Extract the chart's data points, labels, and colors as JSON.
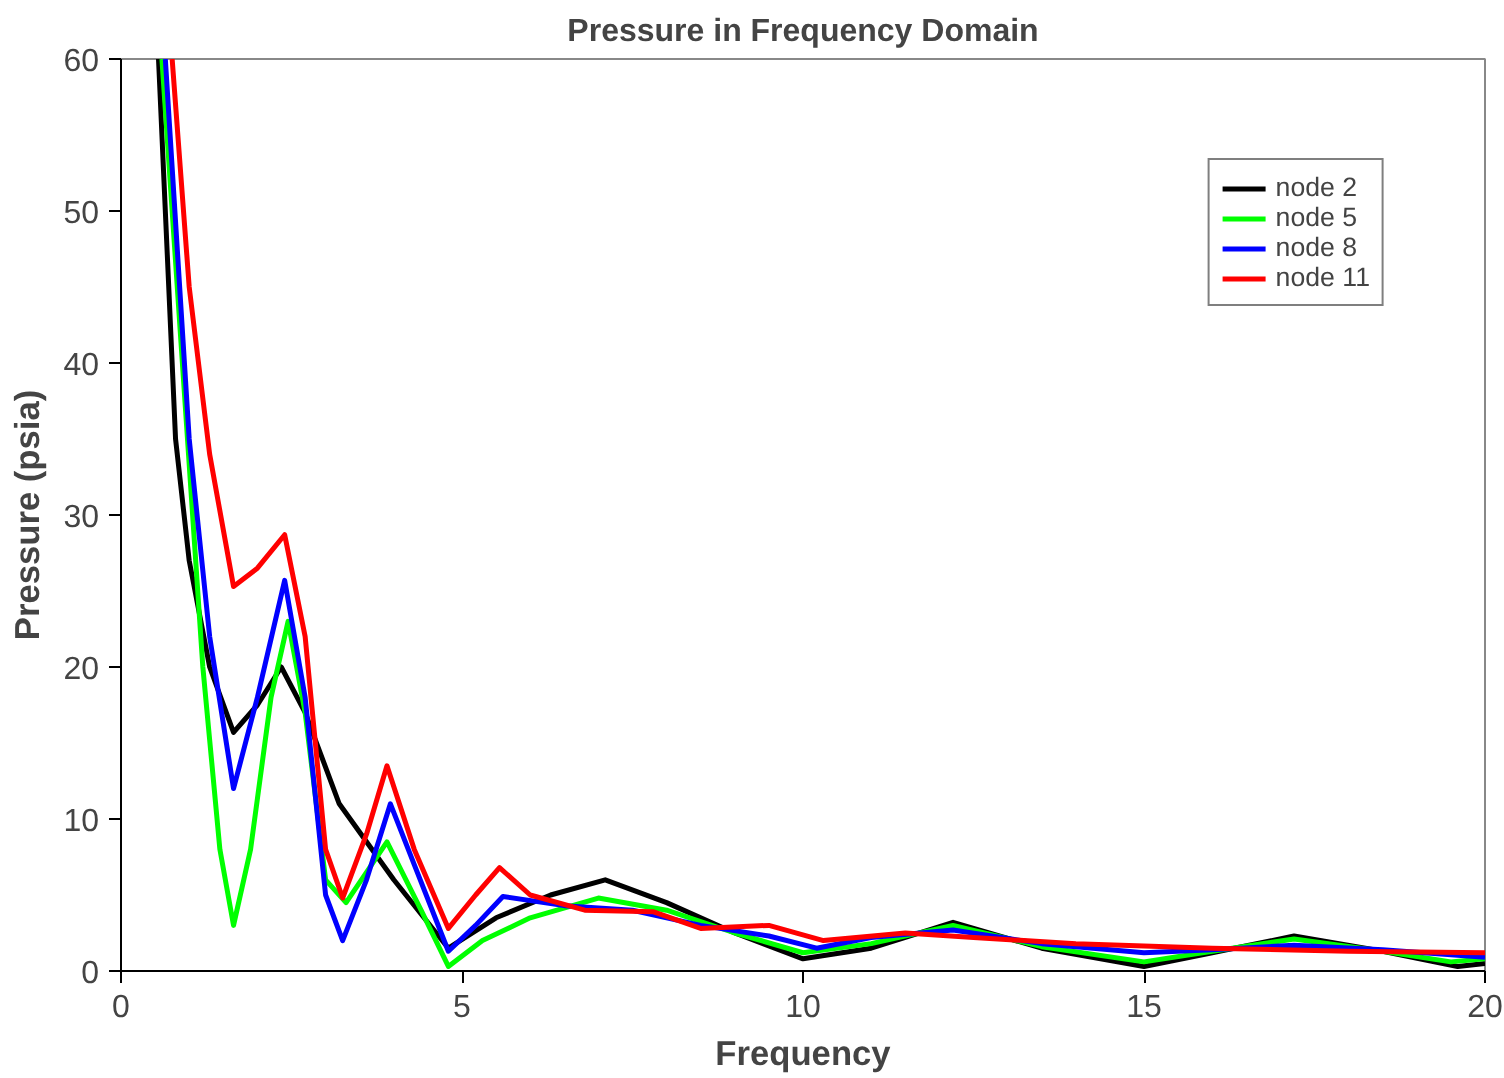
{
  "chart_data": {
    "type": "line",
    "title": "Pressure in Frequency Domain",
    "xlabel": "Frequency",
    "ylabel": "Pressure (psia)",
    "xlim": [
      0,
      20
    ],
    "ylim": [
      0,
      60
    ],
    "xticks": [
      0,
      5,
      10,
      15,
      20
    ],
    "yticks": [
      0,
      10,
      20,
      30,
      40,
      50,
      60
    ],
    "grid": false,
    "legend": "top right",
    "marker": "none",
    "line_style": "solid",
    "series": [
      {
        "name": "node 2",
        "color": "#000000",
        "x": [
          0.55,
          0.8,
          1.0,
          1.3,
          1.65,
          2.0,
          2.35,
          2.7,
          3.2,
          4.0,
          4.8,
          5.5,
          6.3,
          7.1,
          8.0,
          9.0,
          10.0,
          11.0,
          12.2,
          13.5,
          15.0,
          16.0,
          17.2,
          18.5,
          19.6,
          20.0
        ],
        "values": [
          60,
          35,
          27,
          20,
          15.7,
          17.5,
          20,
          17,
          11,
          6,
          1.5,
          3.5,
          5,
          6,
          4.5,
          2.5,
          0.8,
          1.5,
          3.2,
          1.5,
          0.3,
          1.2,
          2.3,
          1.3,
          0.3,
          0.5
        ]
      },
      {
        "name": "node 5",
        "color": "#00ff00",
        "x": [
          0.6,
          0.9,
          1.2,
          1.45,
          1.65,
          1.9,
          2.2,
          2.45,
          2.7,
          3.0,
          3.3,
          3.9,
          4.4,
          4.8,
          5.3,
          6.0,
          7.0,
          8.0,
          9.0,
          10.0,
          11.0,
          12.2,
          13.5,
          15.0,
          16.0,
          17.2,
          18.5,
          19.5,
          20.0
        ],
        "values": [
          60,
          40,
          20,
          8,
          3,
          8,
          18,
          23,
          17,
          6,
          4.5,
          8.5,
          4,
          0.3,
          2,
          3.5,
          4.8,
          4,
          2.5,
          1.2,
          1.8,
          3,
          1.6,
          0.6,
          1.3,
          2.1,
          1.3,
          0.6,
          0.8
        ]
      },
      {
        "name": "node 8",
        "color": "#0000ff",
        "x": [
          0.65,
          1.0,
          1.3,
          1.65,
          2.0,
          2.4,
          2.7,
          3.0,
          3.25,
          3.6,
          3.95,
          4.3,
          4.8,
          5.2,
          5.6,
          6.5,
          7.5,
          8.5,
          9.5,
          10.2,
          11.0,
          12.2,
          13.5,
          15.0,
          16.0,
          17.2,
          18.5,
          20.0
        ],
        "values": [
          60,
          35,
          22,
          12,
          18,
          25.7,
          18,
          5,
          2,
          6,
          11,
          7,
          1.3,
          3,
          4.9,
          4.3,
          4,
          3,
          2.3,
          1.5,
          2.2,
          2.7,
          1.8,
          1.2,
          1.4,
          1.7,
          1.4,
          0.9
        ]
      },
      {
        "name": "node 11",
        "color": "#ff0000",
        "x": [
          0.75,
          1.0,
          1.3,
          1.65,
          2.0,
          2.4,
          2.7,
          3.0,
          3.25,
          3.6,
          3.9,
          4.3,
          4.8,
          5.2,
          5.55,
          6.0,
          6.8,
          7.8,
          8.5,
          9.5,
          10.3,
          11.5,
          12.5,
          14.0,
          16.0,
          18.0,
          20.0
        ],
        "values": [
          60,
          45,
          34,
          25.3,
          26.5,
          28.7,
          22,
          8,
          4.8,
          9,
          13.5,
          8,
          2.8,
          5,
          6.8,
          5,
          4,
          3.9,
          2.8,
          3,
          2,
          2.5,
          2.2,
          1.8,
          1.5,
          1.3,
          1.2
        ]
      }
    ]
  }
}
